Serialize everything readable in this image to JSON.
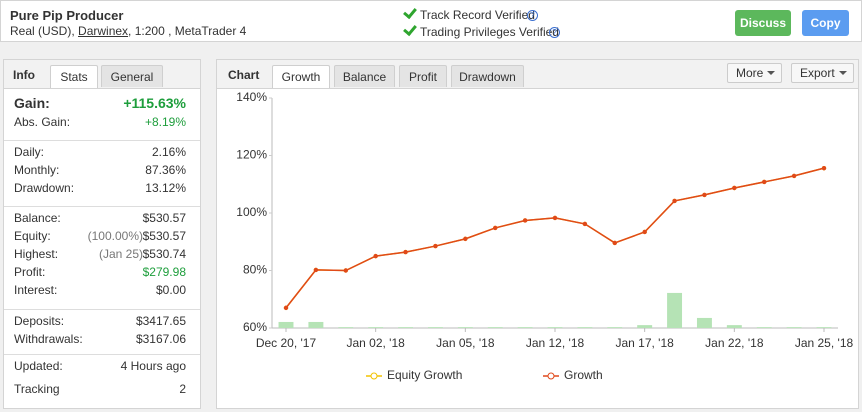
{
  "header": {
    "title": "Pure Pip Producer",
    "account": "Real (USD),",
    "broker": "Darwinex",
    "details": ", 1:200 , MetaTrader 4",
    "verifications": [
      "Track Record Verified",
      "Trading Privileges Verified"
    ],
    "buttons": [
      "Discuss",
      "Copy"
    ]
  },
  "info_panel": {
    "label": "Info",
    "tabs": [
      "Stats",
      "General"
    ],
    "groups": [
      [
        {
          "label": "Gain:",
          "value": "+115.63%",
          "color": "#1e9e3c"
        },
        {
          "label": "Abs. Gain:",
          "value": "+8.19%",
          "color": "#1e9e3c"
        }
      ],
      [
        {
          "label": "Daily:",
          "value": "2.16%"
        },
        {
          "label": "Monthly:",
          "value": "87.36%"
        },
        {
          "label": "Drawdown:",
          "value": "13.12%"
        }
      ],
      [
        {
          "label": "Balance:",
          "value": "$530.57"
        },
        {
          "label": "Equity:",
          "note": "(100.00%)",
          "value": "$530.57"
        },
        {
          "label": "Highest:",
          "note": "(Jan 25)",
          "value": "$530.74"
        },
        {
          "label": "Profit:",
          "value": "$279.98",
          "color": "#1e9e3c"
        },
        {
          "label": "Interest:",
          "value": "$0.00"
        }
      ],
      [
        {
          "label": "Deposits:",
          "value": "$3417.65"
        },
        {
          "label": "Withdrawals:",
          "value": "$3167.06"
        }
      ],
      [
        {
          "label": "Updated:",
          "value": "4 Hours ago"
        },
        {
          "label": "Tracking",
          "value": "2"
        }
      ]
    ]
  },
  "chart_panel": {
    "label": "Chart",
    "tabs": [
      "Growth",
      "Balance",
      "Profit",
      "Drawdown"
    ],
    "menus": [
      "More",
      "Export"
    ]
  },
  "chart_data": {
    "type": "line",
    "categories": [
      "Dec 20, '17",
      null,
      null,
      "Jan 02, '18",
      null,
      null,
      "Jan 05, '18",
      null,
      null,
      "Jan 12, '18",
      null,
      null,
      "Jan 17, '18",
      null,
      null,
      "Jan 22, '18",
      null,
      null,
      "Jan 25, '18"
    ],
    "series": [
      {
        "name": "Equity Growth",
        "color": "#f2c200",
        "values": [
          67.0,
          80.2,
          80.0,
          85.0,
          86.4,
          88.5,
          91.0,
          94.8,
          97.4,
          98.3,
          96.2,
          89.6,
          93.4,
          104.2,
          106.3,
          108.7,
          110.8,
          112.9,
          115.6
        ]
      },
      {
        "name": "Growth",
        "color": "#e0491a",
        "values": [
          67.0,
          80.2,
          80.0,
          85.0,
          86.4,
          88.5,
          91.0,
          94.8,
          97.4,
          98.3,
          96.2,
          89.6,
          93.4,
          104.2,
          106.3,
          108.7,
          110.8,
          112.9,
          115.6
        ]
      }
    ],
    "bars": {
      "color": "#b5e3b5",
      "values": [
        2.1,
        2.1,
        0.3,
        0.3,
        0.3,
        0.3,
        0.3,
        0.3,
        0.3,
        0.3,
        0.3,
        0.3,
        1.0,
        12.2,
        3.5,
        1.0,
        0.3,
        0.3,
        0.3
      ]
    },
    "ylim": [
      60,
      140
    ],
    "yticks": [
      {
        "value": 60,
        "label": "60%"
      },
      {
        "value": 80,
        "label": "80%"
      },
      {
        "value": 100,
        "label": "100%"
      },
      {
        "value": 120,
        "label": "120%"
      },
      {
        "value": 140,
        "label": "140%"
      }
    ],
    "grid": false
  }
}
